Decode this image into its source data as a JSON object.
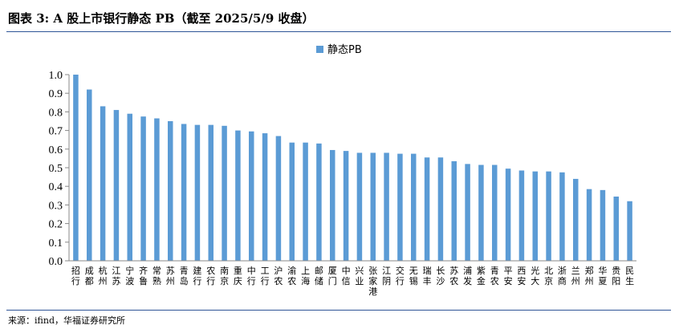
{
  "title": "图表 3:  A 股上市银行静态 PB（截至 2025/5/9 收盘）",
  "source": "来源：ifind，华福证券研究所",
  "chart_data": {
    "type": "bar",
    "legend": "静态PB",
    "legend_position": "top-center",
    "bar_color": "#5b9bd5",
    "ylim": [
      0,
      1.0
    ],
    "yticks": [
      "0.0",
      "0.1",
      "0.2",
      "0.3",
      "0.4",
      "0.5",
      "0.6",
      "0.7",
      "0.8",
      "0.9",
      "1.0"
    ],
    "grid": false,
    "categories": [
      "招行",
      "成都",
      "杭州",
      "江苏",
      "宁波",
      "齐鲁",
      "常熟",
      "苏州",
      "青岛",
      "建行",
      "农行",
      "南京",
      "重庆",
      "中行",
      "工行",
      "沪农",
      "渝农",
      "上海",
      "邮储",
      "厦门",
      "中信",
      "兴业",
      "张家港",
      "江阴",
      "交行",
      "无锡",
      "瑞丰",
      "长沙",
      "苏农",
      "浦发",
      "紫金",
      "青农",
      "平安",
      "西安",
      "光大",
      "北京",
      "浙商",
      "兰州",
      "郑州",
      "华夏",
      "贵阳",
      "民生"
    ],
    "values": [
      1.0,
      0.92,
      0.83,
      0.81,
      0.79,
      0.775,
      0.765,
      0.75,
      0.735,
      0.73,
      0.73,
      0.725,
      0.7,
      0.695,
      0.685,
      0.67,
      0.635,
      0.635,
      0.63,
      0.595,
      0.59,
      0.58,
      0.58,
      0.58,
      0.575,
      0.575,
      0.555,
      0.555,
      0.535,
      0.52,
      0.515,
      0.515,
      0.495,
      0.485,
      0.48,
      0.48,
      0.475,
      0.44,
      0.385,
      0.38,
      0.345,
      0.32
    ]
  }
}
